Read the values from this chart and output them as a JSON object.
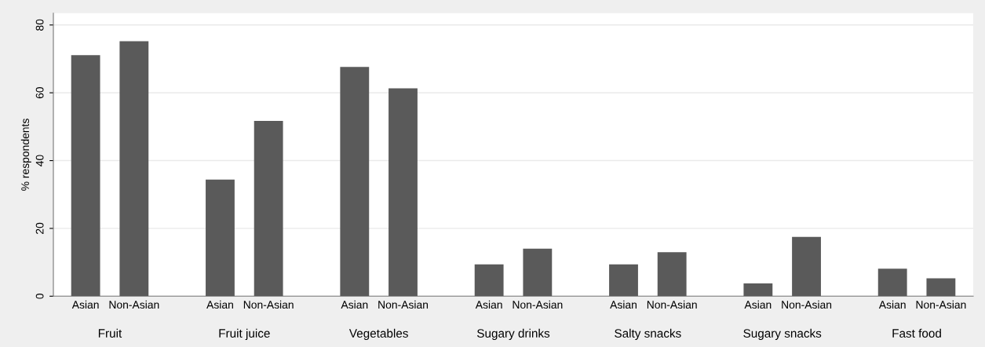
{
  "chart_data": {
    "type": "bar",
    "ylabel": "% respondents",
    "categories": [
      "Fruit",
      "Fruit juice",
      "Vegetables",
      "Sugary drinks",
      "Salty snacks",
      "Sugary snacks",
      "Fast food"
    ],
    "series": [
      {
        "name": "Asian",
        "color": "#5a5a5a",
        "values": [
          71.1,
          34.4,
          67.6,
          9.4,
          9.4,
          3.8,
          8.1
        ]
      },
      {
        "name": "Non-Asian",
        "color": "#5a5a5a",
        "values": [
          75.2,
          51.7,
          61.3,
          14.0,
          13.0,
          17.5,
          5.3
        ]
      }
    ],
    "ylim": [
      0,
      83.5
    ],
    "yticks": [
      0,
      20,
      40,
      60,
      80
    ],
    "grid": "y",
    "legend": false
  }
}
